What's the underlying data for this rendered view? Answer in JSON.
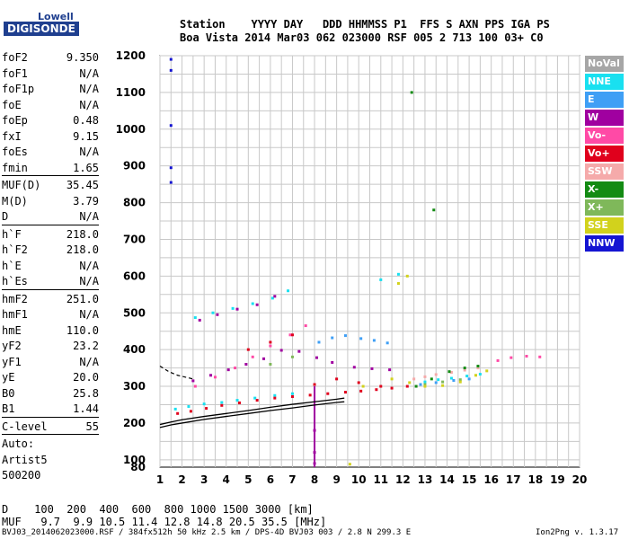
{
  "logo": {
    "line1": "Lowell",
    "line2": "DIGISONDE"
  },
  "header": {
    "line1": "Station    YYYY DAY   DDD HHMMSS P1  FFS S AXN PPS IGA PS",
    "line2": "Boa Vista 2014 Mar03 062 023000 RSF 005 2 713 100 03+ C0"
  },
  "params": [
    {
      "name": "foF2",
      "value": "9.350"
    },
    {
      "name": "foF1",
      "value": "N/A"
    },
    {
      "name": "foF1p",
      "value": "N/A"
    },
    {
      "name": "foE",
      "value": "N/A"
    },
    {
      "name": "foEp",
      "value": "0.48"
    },
    {
      "name": "fxI",
      "value": "9.15"
    },
    {
      "name": "foEs",
      "value": "N/A"
    },
    {
      "name": "fmin",
      "value": "1.65"
    },
    {
      "sep": true
    },
    {
      "name": "MUF(D)",
      "value": "35.45"
    },
    {
      "name": "M(D)",
      "value": "3.79"
    },
    {
      "name": "D",
      "value": "N/A"
    },
    {
      "sep": true
    },
    {
      "name": "h`F",
      "value": "218.0"
    },
    {
      "name": "h`F2",
      "value": "218.0"
    },
    {
      "name": "h`E",
      "value": "N/A"
    },
    {
      "name": "h`Es",
      "value": "N/A"
    },
    {
      "sep": true
    },
    {
      "name": "hmF2",
      "value": "251.0"
    },
    {
      "name": "hmF1",
      "value": "N/A"
    },
    {
      "name": "hmE",
      "value": "110.0"
    },
    {
      "name": "yF2",
      "value": "23.2"
    },
    {
      "name": "yF1",
      "value": "N/A"
    },
    {
      "name": "yE",
      "value": "20.0"
    },
    {
      "name": "B0",
      "value": "25.8"
    },
    {
      "name": "B1",
      "value": "1.44"
    },
    {
      "sep": true
    },
    {
      "name": "C-level",
      "value": "55"
    },
    {
      "sep": true
    },
    {
      "name": "Auto:",
      "value": ""
    },
    {
      "name": "Artist5",
      "value": ""
    },
    {
      "name": "500200",
      "value": ""
    }
  ],
  "legend": [
    {
      "label": "NoVal",
      "color": "#a6a6a6"
    },
    {
      "label": "NNE",
      "color": "#19e0f0"
    },
    {
      "label": "E",
      "color": "#3f9ff5"
    },
    {
      "label": "W",
      "color": "#a000a0"
    },
    {
      "label": "Vo-",
      "color": "#ff4aa6"
    },
    {
      "label": "Vo+",
      "color": "#e0001c"
    },
    {
      "label": "SSW",
      "color": "#f5aaaa"
    },
    {
      "label": "X-",
      "color": "#138b13"
    },
    {
      "label": "X+",
      "color": "#7fb85a"
    },
    {
      "label": "SSE",
      "color": "#d2d21c"
    },
    {
      "label": "NNW",
      "color": "#1414d2"
    }
  ],
  "muf_table": {
    "line1": "D    100  200  400  600  800 1000 1500 3000 [km]",
    "line2": "MUF   9.7  9.9 10.5 11.4 12.8 14.8 20.5 35.5 [MHz]"
  },
  "footer": {
    "left": "BVJ03_2014062023000.RSF / 384fx512h 50 kHz 2.5 km / DPS-4D BVJ03 003 / 2.8 N 299.3 E",
    "right": "Ion2Png v. 1.3.17"
  },
  "chart_data": {
    "type": "scatter",
    "xlim": [
      1,
      20
    ],
    "ylim": [
      80,
      1200
    ],
    "x_ticks": [
      1,
      2,
      3,
      4,
      5,
      6,
      7,
      8,
      9,
      10,
      11,
      12,
      13,
      14,
      15,
      16,
      17,
      18,
      19,
      20
    ],
    "y_ticks": [
      80,
      100,
      200,
      300,
      400,
      500,
      600,
      700,
      800,
      900,
      1000,
      1100,
      1200
    ],
    "grid": true,
    "legend_position": "right",
    "traces": [
      {
        "name": "NNE",
        "color": "#19e0f0",
        "points": [
          [
            1.7,
            238
          ],
          [
            2.3,
            245
          ],
          [
            3.0,
            252
          ],
          [
            3.8,
            256
          ],
          [
            4.5,
            262
          ],
          [
            5.3,
            268
          ],
          [
            6.2,
            275
          ],
          [
            7.0,
            280
          ],
          [
            13.0,
            312
          ],
          [
            13.6,
            318
          ],
          [
            14.2,
            322
          ],
          [
            14.9,
            328
          ],
          [
            15.5,
            333
          ],
          [
            2.6,
            487
          ],
          [
            3.4,
            500
          ],
          [
            4.3,
            512
          ],
          [
            5.2,
            525
          ],
          [
            6.1,
            540
          ],
          [
            6.8,
            560
          ],
          [
            11.0,
            590
          ],
          [
            11.8,
            605
          ]
        ]
      },
      {
        "name": "E",
        "color": "#3f9ff5",
        "points": [
          [
            8.2,
            420
          ],
          [
            8.8,
            432
          ],
          [
            9.4,
            438
          ],
          [
            10.1,
            430
          ],
          [
            10.7,
            425
          ],
          [
            11.3,
            418
          ],
          [
            12.8,
            305
          ],
          [
            13.5,
            310
          ],
          [
            14.3,
            316
          ],
          [
            15.0,
            320
          ]
        ]
      },
      {
        "name": "W",
        "color": "#a000a0",
        "points": [
          [
            2.5,
            315
          ],
          [
            3.3,
            330
          ],
          [
            4.1,
            345
          ],
          [
            4.9,
            360
          ],
          [
            5.7,
            375
          ],
          [
            6.5,
            398
          ],
          [
            7.3,
            395
          ],
          [
            8.1,
            378
          ],
          [
            8.8,
            365
          ],
          [
            9.8,
            352
          ],
          [
            10.6,
            348
          ],
          [
            11.4,
            345
          ],
          [
            8.0,
            180
          ],
          [
            8.0,
            120
          ],
          [
            8.0,
            90
          ],
          [
            2.8,
            480
          ],
          [
            3.6,
            495
          ],
          [
            4.5,
            510
          ],
          [
            5.4,
            522
          ],
          [
            6.2,
            545
          ]
        ]
      },
      {
        "name": "Vo-",
        "color": "#ff4aa6",
        "points": [
          [
            2.6,
            300
          ],
          [
            3.5,
            325
          ],
          [
            4.4,
            350
          ],
          [
            5.2,
            380
          ],
          [
            6.0,
            410
          ],
          [
            6.9,
            440
          ],
          [
            7.6,
            465
          ],
          [
            16.3,
            370
          ],
          [
            16.9,
            378
          ],
          [
            17.6,
            382
          ],
          [
            18.2,
            380
          ]
        ]
      },
      {
        "name": "Vo+",
        "color": "#e0001c",
        "points": [
          [
            1.8,
            226
          ],
          [
            2.4,
            232
          ],
          [
            3.1,
            240
          ],
          [
            3.8,
            248
          ],
          [
            4.6,
            255
          ],
          [
            5.4,
            262
          ],
          [
            6.2,
            268
          ],
          [
            7.0,
            272
          ],
          [
            7.8,
            276
          ],
          [
            8.6,
            280
          ],
          [
            9.4,
            284
          ],
          [
            10.1,
            287
          ],
          [
            10.8,
            291
          ],
          [
            11.5,
            295
          ],
          [
            12.2,
            300
          ],
          [
            5.0,
            400
          ],
          [
            6.0,
            420
          ],
          [
            7.0,
            440
          ],
          [
            8.0,
            305
          ],
          [
            9.0,
            320
          ],
          [
            10.0,
            310
          ],
          [
            11.0,
            300
          ]
        ]
      },
      {
        "name": "SSW",
        "color": "#f5aaaa",
        "points": [
          [
            12.5,
            320
          ],
          [
            13.0,
            326
          ],
          [
            13.5,
            332
          ],
          [
            14.2,
            338
          ],
          [
            14.8,
            344
          ],
          [
            15.4,
            350
          ]
        ]
      },
      {
        "name": "X-",
        "color": "#138b13",
        "points": [
          [
            12.6,
            300
          ],
          [
            13.3,
            320
          ],
          [
            14.1,
            340
          ],
          [
            14.8,
            350
          ],
          [
            15.4,
            355
          ],
          [
            12.4,
            1100
          ],
          [
            13.4,
            780
          ]
        ]
      },
      {
        "name": "X+",
        "color": "#7fb85a",
        "points": [
          [
            6.0,
            360
          ],
          [
            7.0,
            380
          ],
          [
            13.0,
            305
          ],
          [
            13.8,
            312
          ],
          [
            14.6,
            318
          ]
        ]
      },
      {
        "name": "SSE",
        "color": "#d2d21c",
        "points": [
          [
            9.6,
            88
          ],
          [
            10.2,
            300
          ],
          [
            11.5,
            320
          ],
          [
            12.3,
            310
          ],
          [
            13.0,
            300
          ],
          [
            13.8,
            302
          ],
          [
            14.6,
            312
          ],
          [
            15.3,
            330
          ],
          [
            15.8,
            342
          ],
          [
            11.8,
            580
          ],
          [
            12.2,
            600
          ]
        ]
      },
      {
        "name": "NNW",
        "color": "#1414d2",
        "points": [
          [
            1.5,
            1190
          ],
          [
            1.5,
            1160
          ],
          [
            1.5,
            1010
          ],
          [
            1.5,
            895
          ],
          [
            1.5,
            855
          ]
        ]
      }
    ],
    "profile_curve": [
      [
        1.0,
        196
      ],
      [
        1.5,
        203
      ],
      [
        2.0,
        209
      ],
      [
        3.0,
        218
      ],
      [
        4.0,
        226
      ],
      [
        5.0,
        234
      ],
      [
        6.0,
        243
      ],
      [
        7.0,
        251
      ],
      [
        8.0,
        258
      ],
      [
        9.0,
        265
      ],
      [
        9.35,
        268
      ]
    ],
    "profile_curve_lower": [
      [
        1.0,
        188
      ],
      [
        1.5,
        195
      ],
      [
        2.0,
        200
      ],
      [
        3.0,
        210
      ],
      [
        4.0,
        218
      ],
      [
        5.0,
        226
      ],
      [
        6.0,
        234
      ],
      [
        7.0,
        241
      ],
      [
        8.0,
        249
      ],
      [
        9.0,
        256
      ],
      [
        9.35,
        258
      ]
    ],
    "dashed_curve": [
      [
        1.0,
        355
      ],
      [
        1.4,
        340
      ],
      [
        1.8,
        330
      ],
      [
        2.5,
        320
      ]
    ]
  }
}
